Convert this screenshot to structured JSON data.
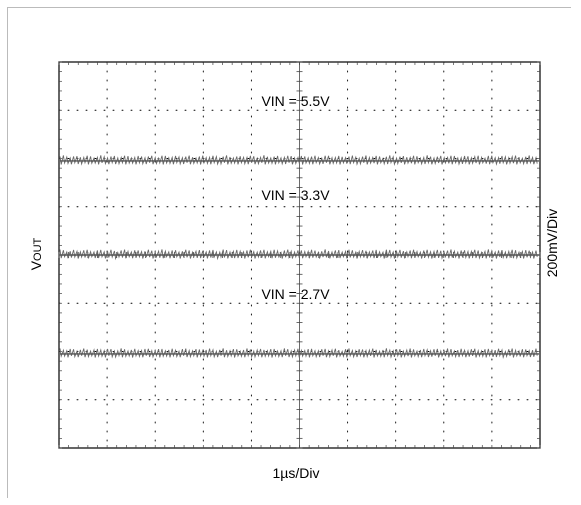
{
  "chart_data": {
    "type": "line",
    "title": "",
    "xlabel": "1µs/Div",
    "ylabel": {
      "main": "V",
      "subscript": "OUT"
    },
    "right_label": "200mV/Div",
    "grid": {
      "divisions_x": 10,
      "divisions_y": 8,
      "style": "dotted",
      "center_cross_ticks": true
    },
    "series": [
      {
        "name": "VIN = 5.5V",
        "label": "VIN = 5.5V",
        "level_div": 5.95,
        "ripple_div": 0.1
      },
      {
        "name": "VIN = 3.3V",
        "label": "VIN = 3.3V",
        "level_div": 4.0,
        "ripple_div": 0.1
      },
      {
        "name": "VIN = 2.7V",
        "label": "VIN = 2.7V",
        "level_div": 1.95,
        "ripple_div": 0.1
      }
    ]
  }
}
